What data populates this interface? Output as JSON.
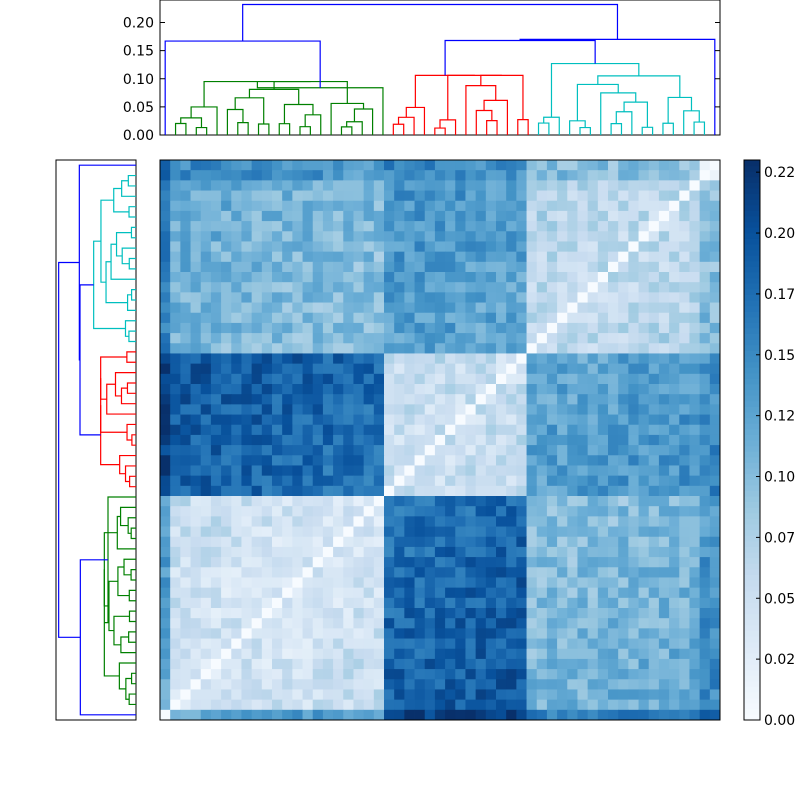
{
  "chart_data": [
    {
      "type": "dendrogram",
      "orientation": "top",
      "ylim": [
        0,
        0.24
      ],
      "yticks": [
        0.0,
        0.05,
        0.1,
        0.15,
        0.2
      ],
      "ytick_labels": [
        "0.00",
        "0.05",
        "0.10",
        "0.15",
        "0.20"
      ],
      "leaf_count": 55,
      "cluster_colors": [
        "#008000",
        "#ff0000",
        "#00bfbf"
      ],
      "link_color": "#0000ff",
      "root_height": 0.232,
      "sub_heights": {
        "left": 0.167,
        "right": 0.17,
        "inner": 0.168
      },
      "clusters": [
        {
          "color": "#008000",
          "leaves": 20,
          "height": 0.095
        },
        {
          "color": "#ff0000",
          "leaves": 14,
          "height": 0.106
        },
        {
          "color": "#00bfbf",
          "leaves": 17,
          "height": 0.127
        }
      ],
      "singleton_height": 0.084
    },
    {
      "type": "dendrogram",
      "orientation": "left",
      "leaf_count": 55,
      "cluster_colors": [
        "#00bfbf",
        "#ff0000",
        "#008000"
      ],
      "link_color": "#0000ff"
    },
    {
      "type": "heatmap",
      "rows": 55,
      "cols": 55,
      "colormap": "Blues",
      "value_range": [
        0.0,
        0.23
      ],
      "diagonal": 0.0
    },
    {
      "type": "colorbar",
      "vmin": 0.0,
      "vmax": 0.23,
      "ticks": [
        0.0,
        0.025,
        0.05,
        0.075,
        0.1,
        0.125,
        0.15,
        0.175,
        0.2,
        0.225
      ],
      "tick_labels": [
        "0.00",
        "0.02",
        "0.05",
        "0.07",
        "0.10",
        "0.12",
        "0.15",
        "0.17",
        "0.20",
        "0.22"
      ]
    }
  ]
}
